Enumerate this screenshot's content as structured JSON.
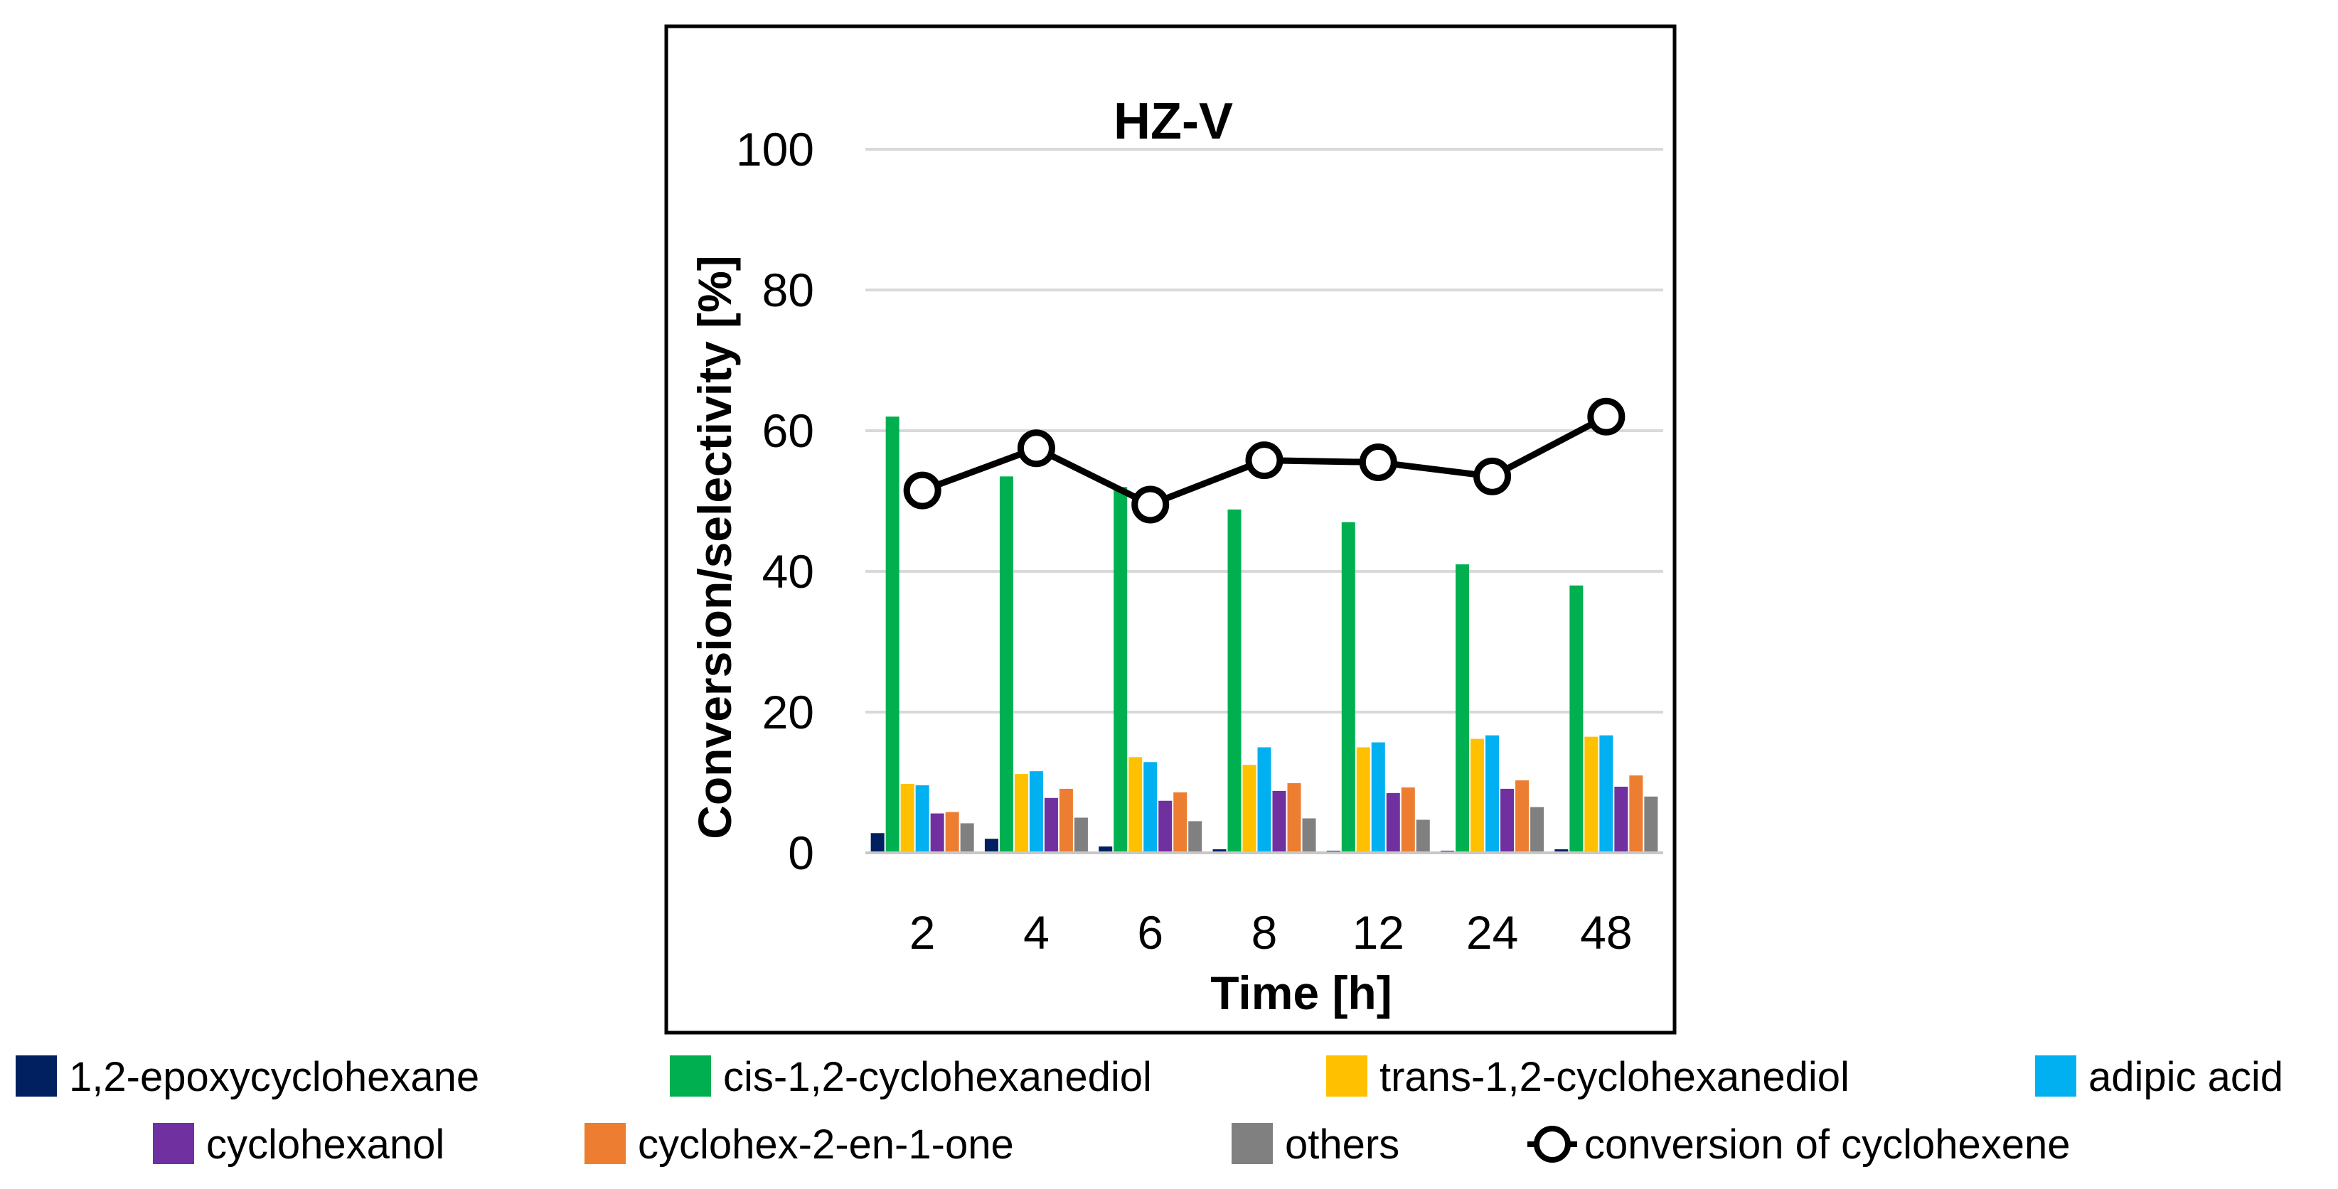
{
  "chart_data": {
    "type": "bar",
    "title": "HZ-V",
    "xlabel": "Time [h]",
    "ylabel": "Conversion/selectivity [%]",
    "ylim": [
      0,
      100
    ],
    "yticks": [
      0,
      20,
      40,
      60,
      80,
      100
    ],
    "grid": true,
    "legend_position": "bottom",
    "categories": [
      "2",
      "4",
      "6",
      "8",
      "12",
      "24",
      "48"
    ],
    "series": [
      {
        "name": "1,2-epoxycyclohexane",
        "color": "#002060",
        "values": [
          2.8,
          2.0,
          0.9,
          0.5,
          0.3,
          0.3,
          0.5
        ]
      },
      {
        "name": "cis-1,2-cyclohexanediol",
        "color": "#00b050",
        "values": [
          62.0,
          53.5,
          52.0,
          48.8,
          47.0,
          41.0,
          38.0
        ]
      },
      {
        "name": "trans-1,2-cyclohexanediol",
        "color": "#ffc000",
        "values": [
          9.8,
          11.2,
          13.6,
          12.5,
          15.0,
          16.2,
          16.5
        ]
      },
      {
        "name": "adipic acid",
        "color": "#00b0f0",
        "values": [
          9.6,
          11.6,
          12.9,
          15.0,
          15.7,
          16.7,
          16.7
        ]
      },
      {
        "name": "cyclohexanol",
        "color": "#7030a0",
        "values": [
          5.6,
          7.8,
          7.4,
          8.8,
          8.5,
          9.1,
          9.4
        ]
      },
      {
        "name": "cyclohex-2-en-1-one",
        "color": "#ed7d31",
        "values": [
          5.8,
          9.1,
          8.6,
          9.9,
          9.3,
          10.3,
          11.0
        ]
      },
      {
        "name": "others",
        "color": "#808080",
        "values": [
          4.2,
          5.0,
          4.5,
          4.9,
          4.7,
          6.5,
          8.0
        ]
      }
    ],
    "line_series": {
      "name": "conversion of cyclohexene",
      "color": "#000000",
      "values": [
        51.5,
        57.5,
        49.5,
        55.8,
        55.5,
        53.5,
        62.0
      ]
    }
  }
}
